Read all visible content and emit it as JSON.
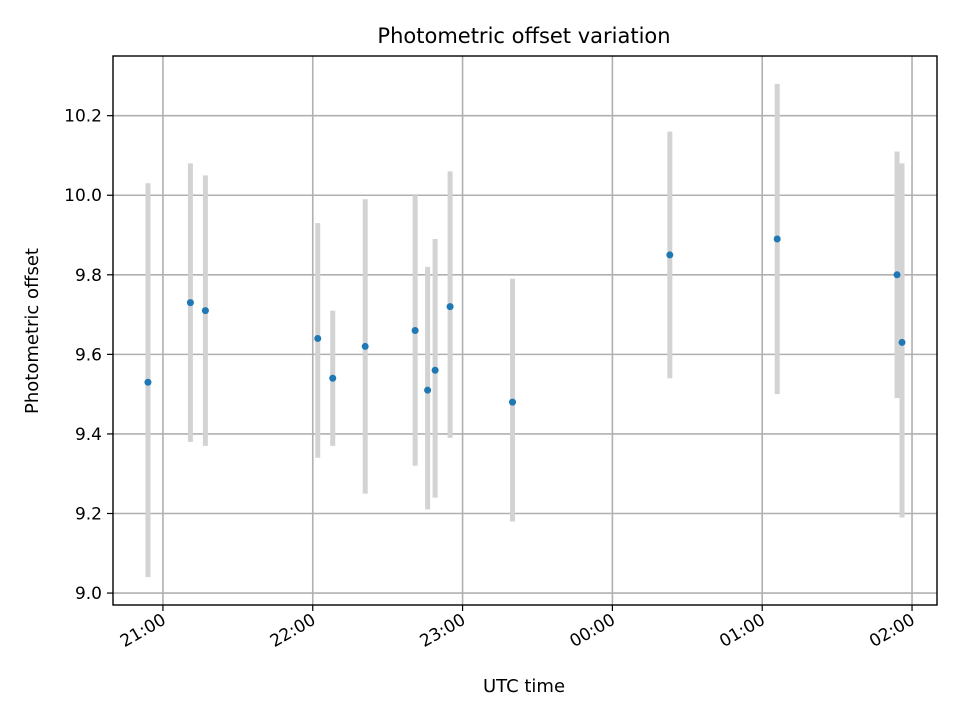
{
  "chart_data": {
    "type": "scatter",
    "title": "Photometric offset variation",
    "xlabel": "UTC time",
    "ylabel": "Photometric offset",
    "x_axis_kind": "time (UTC)",
    "xlim": [
      "20:40",
      "02:10"
    ],
    "ylim": [
      8.97,
      10.35
    ],
    "x_ticks": [
      {
        "time": "21:00",
        "label": "21:00"
      },
      {
        "time": "22:00",
        "label": "22:00"
      },
      {
        "time": "23:00",
        "label": "23:00"
      },
      {
        "time": "00:00",
        "label": "00:00"
      },
      {
        "time": "01:00",
        "label": "01:00"
      },
      {
        "time": "02:00",
        "label": "02:00"
      }
    ],
    "y_ticks": [
      {
        "value": 9.0,
        "label": "9.0"
      },
      {
        "value": 9.2,
        "label": "9.2"
      },
      {
        "value": 9.4,
        "label": "9.4"
      },
      {
        "value": 9.6,
        "label": "9.6"
      },
      {
        "value": 9.8,
        "label": "9.8"
      },
      {
        "value": 10.0,
        "label": "10.0"
      },
      {
        "value": 10.2,
        "label": "10.2"
      }
    ],
    "grid": true,
    "x_tick_rotation": "rotated ~30°",
    "point_color": "#1f77b4",
    "errorbar_color": "#d3d3d3",
    "points": [
      {
        "time": "20:54",
        "y": 9.53,
        "lo": 9.04,
        "hi": 10.03
      },
      {
        "time": "21:11",
        "y": 9.73,
        "lo": 9.38,
        "hi": 10.08
      },
      {
        "time": "21:17",
        "y": 9.71,
        "lo": 9.37,
        "hi": 10.05
      },
      {
        "time": "22:02",
        "y": 9.64,
        "lo": 9.34,
        "hi": 9.93
      },
      {
        "time": "22:08",
        "y": 9.54,
        "lo": 9.37,
        "hi": 9.71
      },
      {
        "time": "22:21",
        "y": 9.62,
        "lo": 9.25,
        "hi": 9.99
      },
      {
        "time": "22:41",
        "y": 9.66,
        "lo": 9.32,
        "hi": 10.0
      },
      {
        "time": "22:46",
        "y": 9.51,
        "lo": 9.21,
        "hi": 9.82
      },
      {
        "time": "22:49",
        "y": 9.56,
        "lo": 9.24,
        "hi": 9.89
      },
      {
        "time": "22:55",
        "y": 9.72,
        "lo": 9.39,
        "hi": 10.06
      },
      {
        "time": "23:20",
        "y": 9.48,
        "lo": 9.18,
        "hi": 9.79
      },
      {
        "time": "00:23",
        "y": 9.85,
        "lo": 9.54,
        "hi": 10.16
      },
      {
        "time": "01:06",
        "y": 9.89,
        "lo": 9.5,
        "hi": 10.28
      },
      {
        "time": "01:54",
        "y": 9.8,
        "lo": 9.49,
        "hi": 10.11
      },
      {
        "time": "01:56",
        "y": 9.63,
        "lo": 9.19,
        "hi": 10.08
      }
    ]
  }
}
